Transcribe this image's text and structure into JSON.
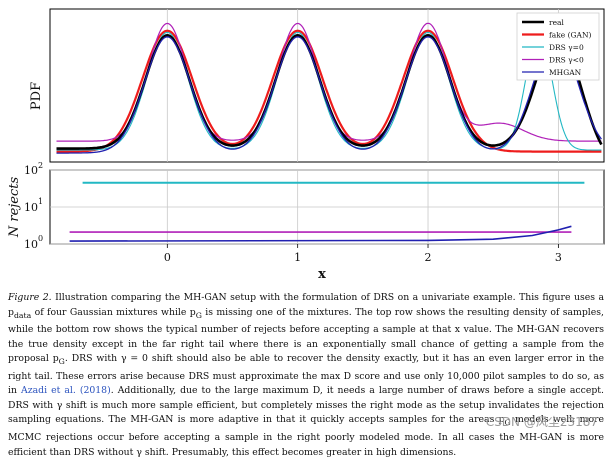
{
  "chart_data": [
    {
      "type": "line",
      "panel": "top",
      "ylabel": "PDF",
      "xlim": [
        -0.9,
        3.35
      ],
      "ylim": [
        0,
        1.0
      ],
      "grid": true,
      "legend_position": "top-right",
      "colors": {
        "real": "#000000",
        "fake": "#ee1c1c",
        "drs0": "#22b8c4",
        "drsneg": "#b020b8",
        "mhgan": "#2020b0"
      },
      "series": [
        {
          "name": "real",
          "key": "real",
          "description": "four equal Gaussian modes at 0, 1, 2, 3"
        },
        {
          "name": "fake (GAN)",
          "key": "fake",
          "description": "three modes at 0, 1, 2; right mode missing"
        },
        {
          "name": "DRS γ=0",
          "key": "drs0",
          "description": "recovers modes, right mode shifted to ~2.85"
        },
        {
          "name": "DRS γ<0",
          "key": "drsneg",
          "description": "over-sharpened modes, weak right mode"
        },
        {
          "name": "MHGAN",
          "key": "mhgan",
          "description": "close to real density"
        }
      ],
      "legend_labels": [
        "real",
        "fake (GAN)",
        "DRS γ=0",
        "DRS γ<0",
        "MHGAN"
      ]
    },
    {
      "type": "line",
      "panel": "bottom",
      "ylabel": "N rejects",
      "xlabel": "x",
      "xlim": [
        -0.9,
        3.35
      ],
      "ylim_log10": [
        0,
        2
      ],
      "x_ticks": [
        0,
        1,
        2,
        3
      ],
      "y_tick_labels": [
        "10",
        "10",
        "10"
      ],
      "y_tick_exponents": [
        "0",
        "1",
        "2"
      ],
      "series": [
        {
          "name": "DRS γ=0",
          "key": "drs0",
          "x": [
            -0.65,
            3.2
          ],
          "y": [
            45,
            45
          ]
        },
        {
          "name": "DRS γ<0",
          "key": "drsneg",
          "x": [
            -0.75,
            2.0,
            2.8,
            3.1
          ],
          "y": [
            2.1,
            2.1,
            2.1,
            2.1
          ]
        },
        {
          "name": "MHGAN",
          "key": "mhgan",
          "x": [
            -0.75,
            2.0,
            2.5,
            2.8,
            3.0,
            3.1
          ],
          "y": [
            1.2,
            1.25,
            1.35,
            1.7,
            2.4,
            3.0
          ]
        }
      ]
    }
  ],
  "caption": {
    "label": "Figure 2.",
    "text_1": " Illustration comparing the MH-GAN setup with the formulation of DRS on a univariate example. This figure uses a p",
    "sub_data": "data",
    "text_2": " of four Gaussian mixtures while p",
    "sub_g1": "G",
    "text_3": " is missing one of the mixtures. The top row shows the resulting density of samples, while the bottom row shows the typical number of rejects before accepting a sample at that x value. The MH-GAN recovers the true density except in the far right tail where there is an exponentially small chance of getting a sample from the proposal p",
    "sub_g2": "G",
    "text_4": ". DRS with γ = 0 shift should also be able to recover the density exactly, but it has an even larger error in the right tail. These errors arise because DRS must approximate the max D score and use only 10,000 pilot samples to do so, as in ",
    "cite": "Azadi et al. (2018)",
    "text_5": ". Additionally, due to the large maximum D, it needs a large number of draws before a single accept. DRS with γ shift is much more sample efficient, but completely misses the right mode as the setup invalidates the rejection sampling equations. The MH-GAN is more adaptive in that it quickly accepts samples for the areas p",
    "sub_g3": "G",
    "text_6": " models well; more MCMC rejections occur before accepting a sample in the right poorly modeled mode. In all cases the MH-GAN is more efficient than DRS without γ shift. Presumably, this effect becomes greater in high dimensions."
  },
  "watermark": "CSDN @风尘23187"
}
